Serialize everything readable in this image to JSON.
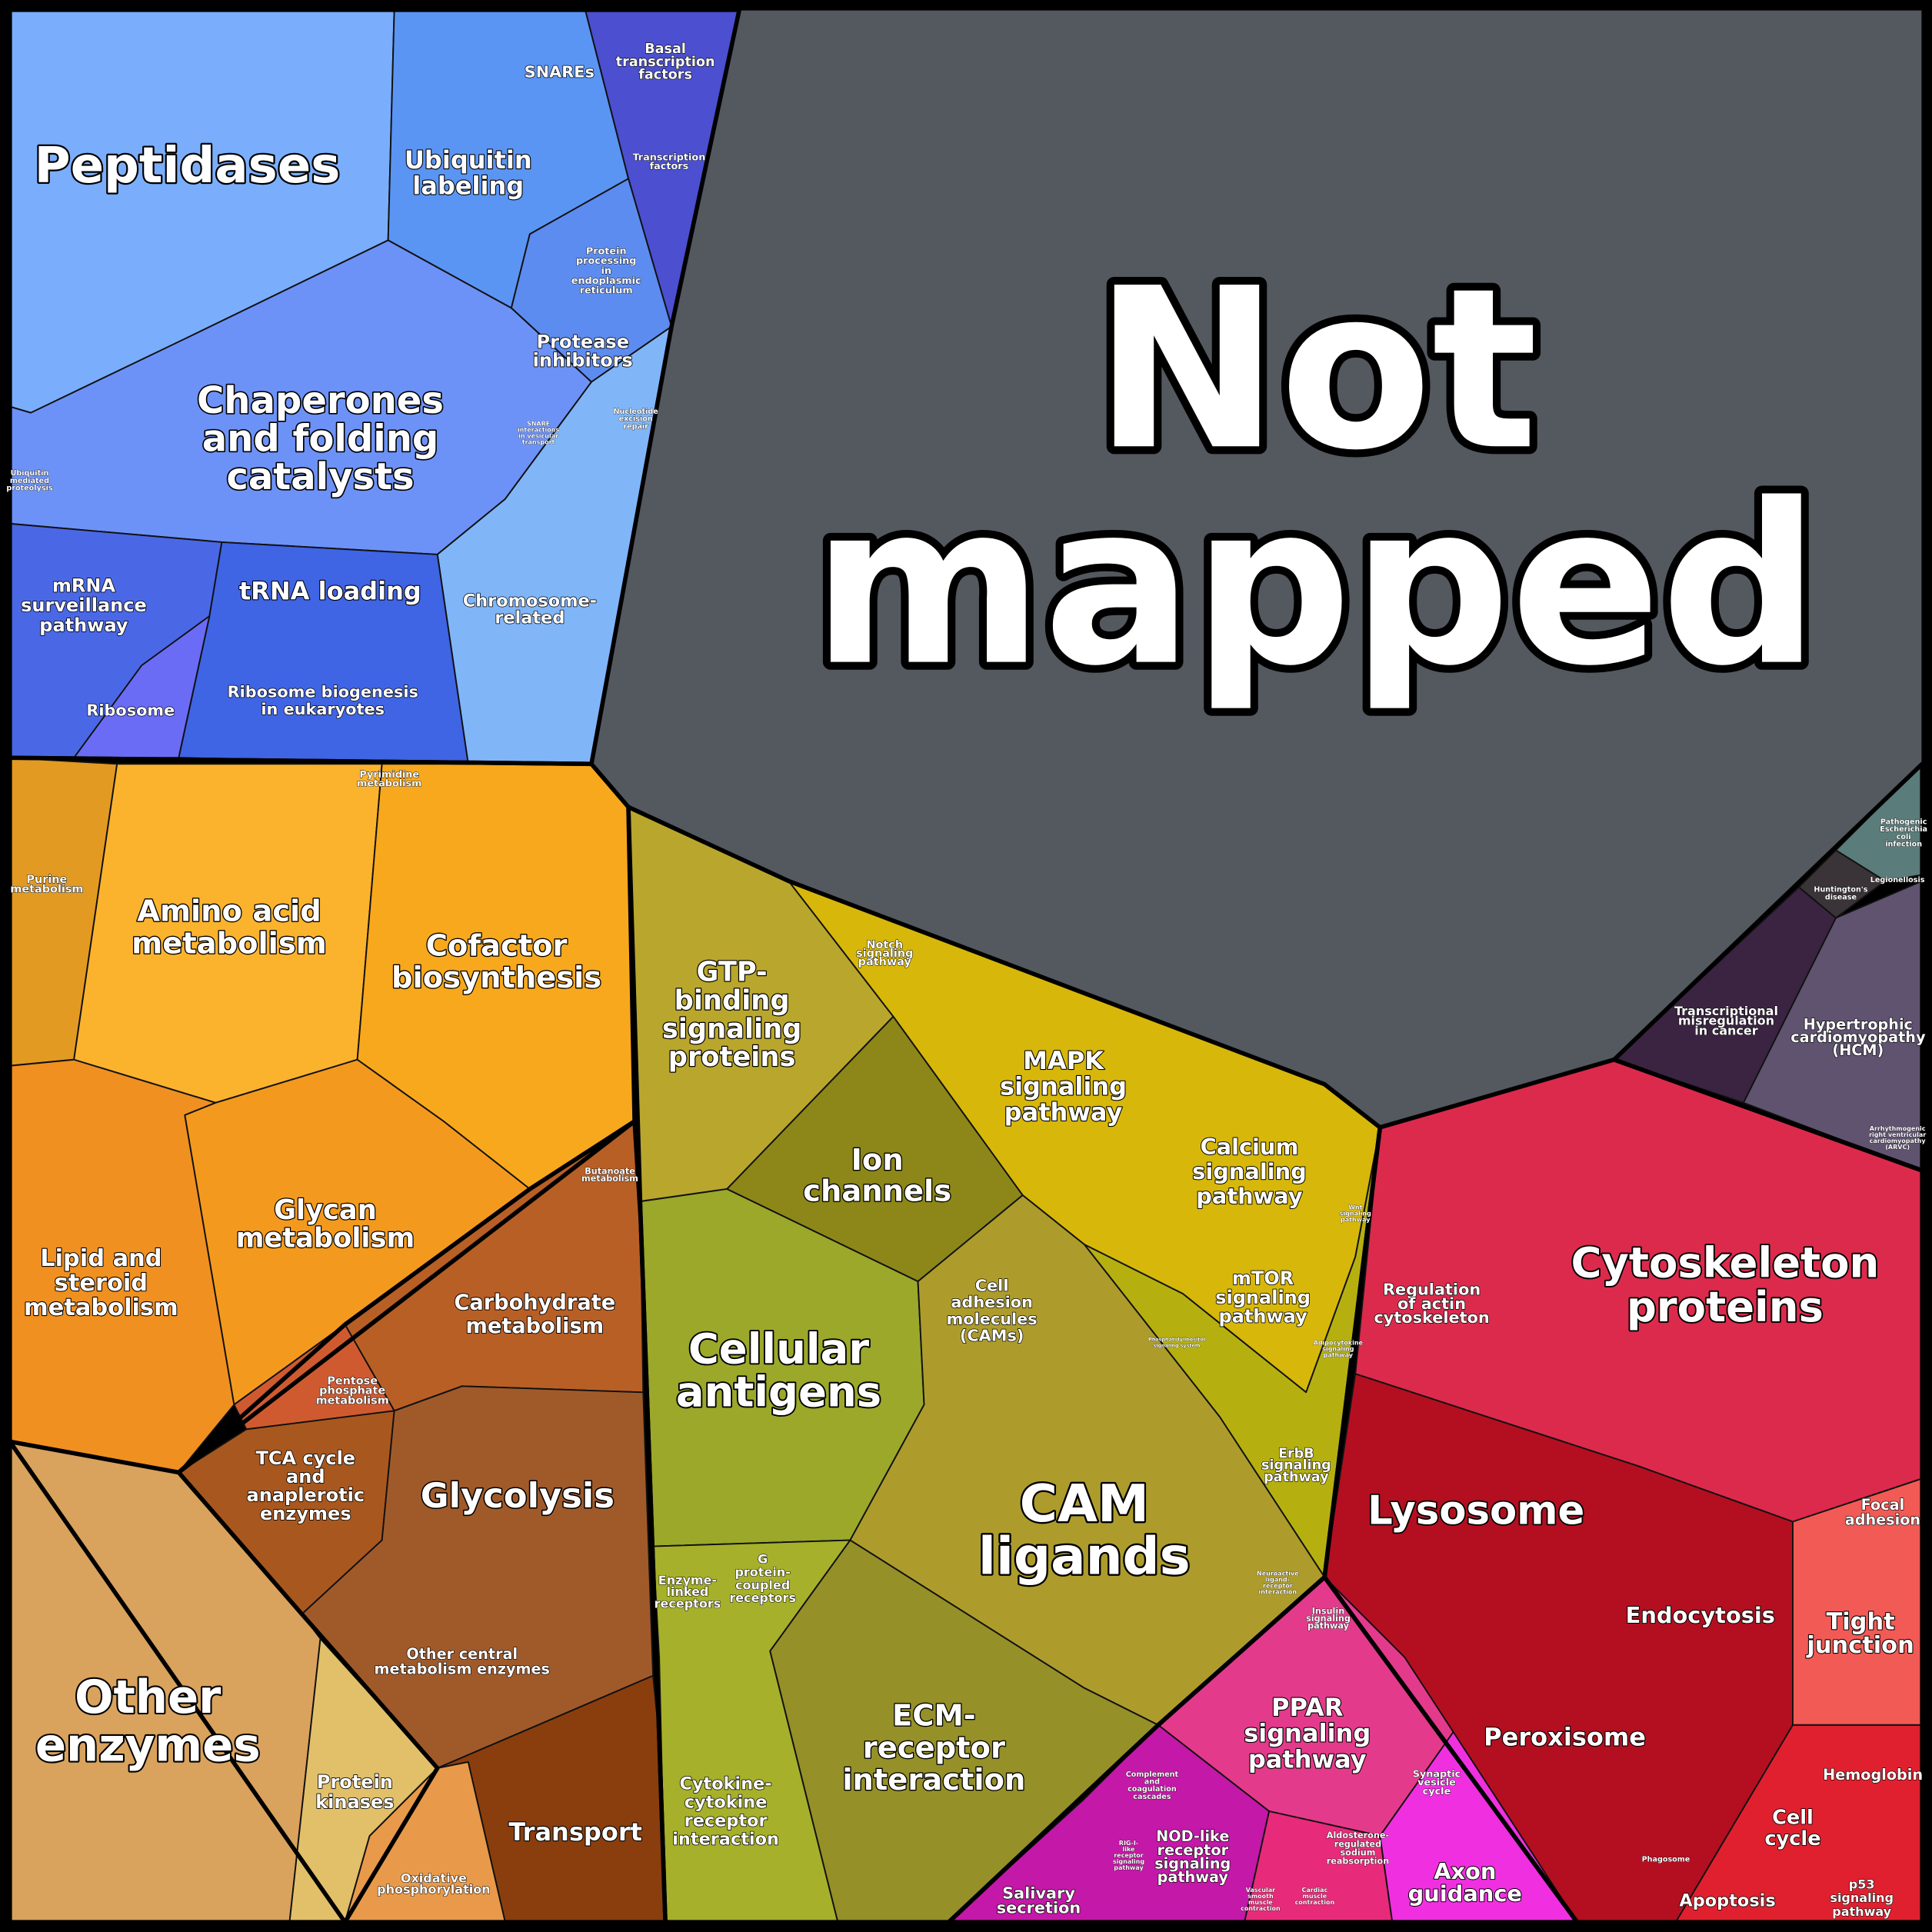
{
  "labels": [
    [
      "Peptidases"
    ],
    [
      "Ubiquitin",
      "labeling"
    ],
    [
      "SNAREs"
    ],
    [
      "Basal",
      "transcription",
      "factors"
    ],
    [
      "Transcription",
      "factors"
    ],
    [
      "Protein",
      "processing",
      "in",
      "endoplasmic",
      "reticulum"
    ],
    [
      "Protease",
      "inhibitors"
    ],
    [
      "Chaperones",
      "and folding",
      "catalysts"
    ],
    [
      "Ubiquitin",
      "mediated",
      "proteolysis"
    ],
    [
      "SNARE",
      "interactions",
      "in vesicular",
      "transport"
    ],
    [
      "Nucleotide",
      "excision",
      "repair"
    ],
    [
      "mRNA",
      "surveillance",
      "pathway"
    ],
    [
      "tRNA loading"
    ],
    [
      "Chromosome-",
      "related"
    ],
    [
      "Ribosome"
    ],
    [
      "Ribosome biogenesis",
      "in eukaryotes"
    ],
    [
      "Pyrimidine",
      "metabolism"
    ],
    [
      "Purine",
      "metabolism"
    ],
    [
      "Amino acid",
      "metabolism"
    ],
    [
      "Cofactor",
      "biosynthesis"
    ],
    [
      "Butanoate",
      "metabolism"
    ],
    [
      "Glycan",
      "metabolism"
    ],
    [
      "Lipid and",
      "steroid",
      "metabolism"
    ],
    [
      "Carbohydrate",
      "metabolism"
    ],
    [
      "Pentose",
      "phosphate",
      "metabolism"
    ],
    [
      "TCA cycle",
      "and",
      "anaplerotic",
      "enzymes"
    ],
    [
      "Glycolysis"
    ],
    [
      "Other central",
      "metabolism enzymes"
    ],
    [
      "Other",
      "enzymes"
    ],
    [
      "Protein",
      "kinases"
    ],
    [
      "Transport"
    ],
    [
      "Oxidative",
      "phosphorylation"
    ],
    [
      "GTP-",
      "binding",
      "signaling",
      "proteins"
    ],
    [
      "Notch",
      "signaling",
      "pathway"
    ],
    [
      "MAPK",
      "signaling",
      "pathway"
    ],
    [
      "Ion",
      "channels"
    ],
    [
      "Calcium",
      "signaling",
      "pathway"
    ],
    [
      "Wnt",
      "signaling",
      "pathway"
    ],
    [
      "Cell",
      "adhesion",
      "molecules",
      "(CAMs)"
    ],
    [
      "mTOR",
      "signaling",
      "pathway"
    ],
    [
      "Phosphatidylinositol",
      "signaling system"
    ],
    [
      "Adipocytokine",
      "signaling",
      "pathway"
    ],
    [
      "Cellular",
      "antigens"
    ],
    [
      "ErbB",
      "signaling",
      "pathway"
    ],
    [
      "CAM",
      "ligands"
    ],
    [
      "Neuroactive",
      "ligand-",
      "receptor",
      "interaction"
    ],
    [
      "Enzyme-",
      "linked",
      "receptors"
    ],
    [
      "G",
      "protein-",
      "coupled",
      "receptors"
    ],
    [
      "ECM-",
      "receptor",
      "interaction"
    ],
    [
      "Cytokine-",
      "cytokine",
      "receptor",
      "interaction"
    ],
    [
      "Insulin",
      "signaling",
      "pathway"
    ],
    [
      "PPAR",
      "signaling",
      "pathway"
    ],
    [
      "Complement",
      "and",
      "coagulation",
      "cascades"
    ],
    [
      "Synaptic",
      "vesicle",
      "cycle"
    ],
    [
      "RIG-I-",
      "like",
      "receptor",
      "signaling",
      "pathway"
    ],
    [
      "NOD-like",
      "receptor",
      "signaling",
      "pathway"
    ],
    [
      "Aldosterone-",
      "regulated",
      "sodium",
      "reabsorption"
    ],
    [
      "Salivary",
      "secretion"
    ],
    [
      "Vascular",
      "smooth",
      "muscle",
      "contraction"
    ],
    [
      "Cardiac",
      "muscle",
      "contraction"
    ],
    [
      "Axon",
      "guidance"
    ],
    [
      "Not",
      "mapped"
    ],
    [
      "Pathogenic",
      "Escherichia",
      "coli",
      "infection"
    ],
    [
      "Legionellosis"
    ],
    [
      "Huntington's",
      "disease"
    ],
    [
      "Transcriptional",
      "misregulation",
      "in cancer"
    ],
    [
      "Hypertrophic",
      "cardiomyopathy",
      "(HCM)"
    ],
    [
      "Arrhythmogenic",
      "right ventricular",
      "cardiomyopathy",
      "(ARVC)"
    ],
    [
      "Regulation",
      "of actin",
      "cytoskeleton"
    ],
    [
      "Cytoskeleton",
      "proteins"
    ],
    [
      "Lysosome"
    ],
    [
      "Focal",
      "adhesion"
    ],
    [
      "Endocytosis"
    ],
    [
      "Tight",
      "junction"
    ],
    [
      "Peroxisome"
    ],
    [
      "Hemoglobin"
    ],
    [
      "Phagosome"
    ],
    [
      "Cell",
      "cycle"
    ],
    [
      "Apoptosis"
    ],
    [
      "p53",
      "signaling",
      "pathway"
    ]
  ]
}
